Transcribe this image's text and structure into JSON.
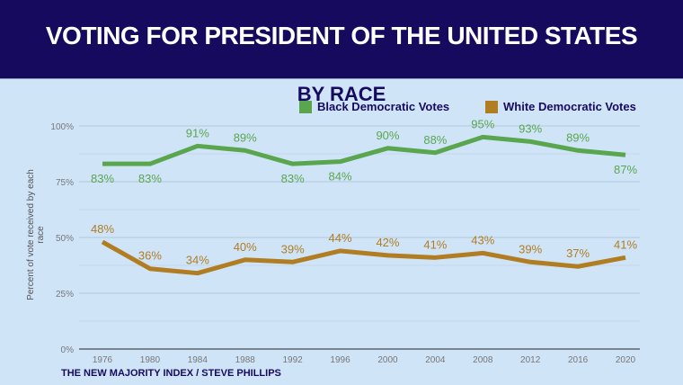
{
  "header": {
    "title": "VOTING FOR PRESIDENT OF THE UNITED STATES"
  },
  "source": "THE NEW MAJORITY INDEX / STEVE PHILLIPS",
  "chart_data": {
    "type": "line",
    "title": "BY RACE",
    "ylabel": "Percent of vote received by each race",
    "xlabel": "",
    "categories": [
      "1976",
      "1980",
      "1984",
      "1988",
      "1992",
      "1996",
      "2000",
      "2004",
      "2008",
      "2012",
      "2016",
      "2020"
    ],
    "yticks": [
      "0%",
      "25%",
      "50%",
      "75%",
      "100%"
    ],
    "ylim": [
      0,
      100
    ],
    "grid": true,
    "legend": "top-right",
    "series": [
      {
        "name": "Black Democratic Votes",
        "color": "#5aa64f",
        "values": [
          83,
          83,
          91,
          89,
          83,
          84,
          90,
          88,
          95,
          93,
          89,
          87
        ]
      },
      {
        "name": "White Democratic Votes",
        "color": "#b07d22",
        "values": [
          48,
          36,
          34,
          40,
          39,
          44,
          42,
          41,
          43,
          39,
          37,
          41
        ]
      }
    ]
  }
}
